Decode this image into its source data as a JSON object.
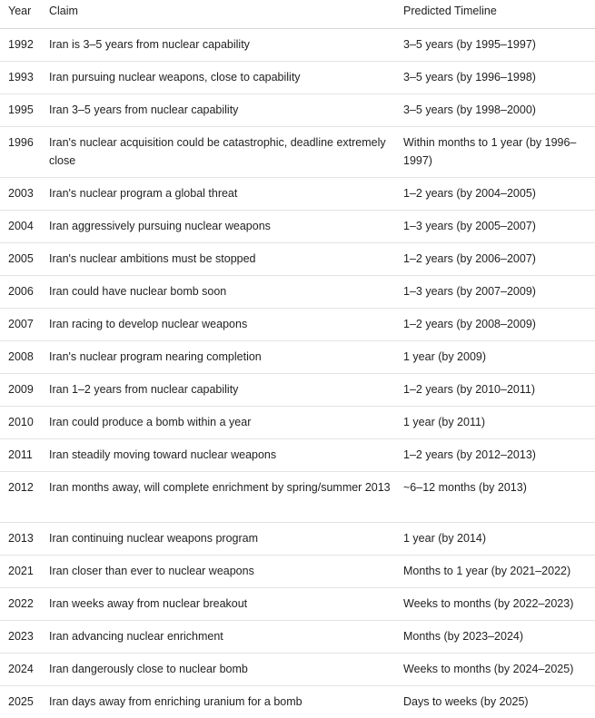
{
  "table": {
    "headers": {
      "year": "Year",
      "claim": "Claim",
      "timeline": "Predicted Timeline"
    },
    "rows": [
      {
        "year": "1992",
        "claim": "Iran is 3–5 years from nuclear capability",
        "timeline": "3–5 years (by 1995–1997)"
      },
      {
        "year": "1993",
        "claim": "Iran pursuing nuclear weapons, close to capability",
        "timeline": "3–5 years (by 1996–1998)"
      },
      {
        "year": "1995",
        "claim": "Iran 3–5 years from nuclear capability",
        "timeline": "3–5 years (by 1998–2000)"
      },
      {
        "year": "1996",
        "claim": "Iran's nuclear acquisition could be catastrophic, deadline extremely close",
        "timeline": "Within months to 1 year (by 1996–1997)"
      },
      {
        "year": "2003",
        "claim": "Iran's nuclear program a global threat",
        "timeline": "1–2 years (by 2004–2005)"
      },
      {
        "year": "2004",
        "claim": "Iran aggressively pursuing nuclear weapons",
        "timeline": "1–3 years (by 2005–2007)"
      },
      {
        "year": "2005",
        "claim": "Iran's nuclear ambitions must be stopped",
        "timeline": "1–2 years (by 2006–2007)"
      },
      {
        "year": "2006",
        "claim": "Iran could have nuclear bomb soon",
        "timeline": "1–3 years (by 2007–2009)"
      },
      {
        "year": "2007",
        "claim": "Iran racing to develop nuclear weapons",
        "timeline": "1–2 years (by 2008–2009)"
      },
      {
        "year": "2008",
        "claim": "Iran's nuclear program nearing completion",
        "timeline": "1 year (by 2009)"
      },
      {
        "year": "2009",
        "claim": "Iran 1–2 years from nuclear capability",
        "timeline": "1–2 years (by 2010–2011)"
      },
      {
        "year": "2010",
        "claim": "Iran could produce a bomb within a year",
        "timeline": "1 year (by 2011)"
      },
      {
        "year": "2011",
        "claim": "Iran steadily moving toward nuclear weapons",
        "timeline": "1–2 years (by 2012–2013)"
      },
      {
        "year": "2012",
        "claim": "Iran months away, will complete enrichment by spring/summer 2013",
        "timeline": "~6–12 months (by 2013)"
      },
      {
        "year": "2013",
        "claim": "Iran continuing nuclear weapons program",
        "timeline": "1 year (by 2014)"
      },
      {
        "year": "2021",
        "claim": "Iran closer than ever to nuclear weapons",
        "timeline": "Months to 1 year (by 2021–2022)"
      },
      {
        "year": "2022",
        "claim": "Iran weeks away from nuclear breakout",
        "timeline": "Weeks to months (by 2022–2023)"
      },
      {
        "year": "2023",
        "claim": "Iran advancing nuclear enrichment",
        "timeline": "Months (by 2023–2024)"
      },
      {
        "year": "2024",
        "claim": "Iran dangerously close to nuclear bomb",
        "timeline": "Weeks to months (by 2024–2025)"
      },
      {
        "year": "2025",
        "claim": "Iran days away from enriching uranium for a bomb",
        "timeline": "Days to weeks (by 2025)"
      }
    ]
  }
}
